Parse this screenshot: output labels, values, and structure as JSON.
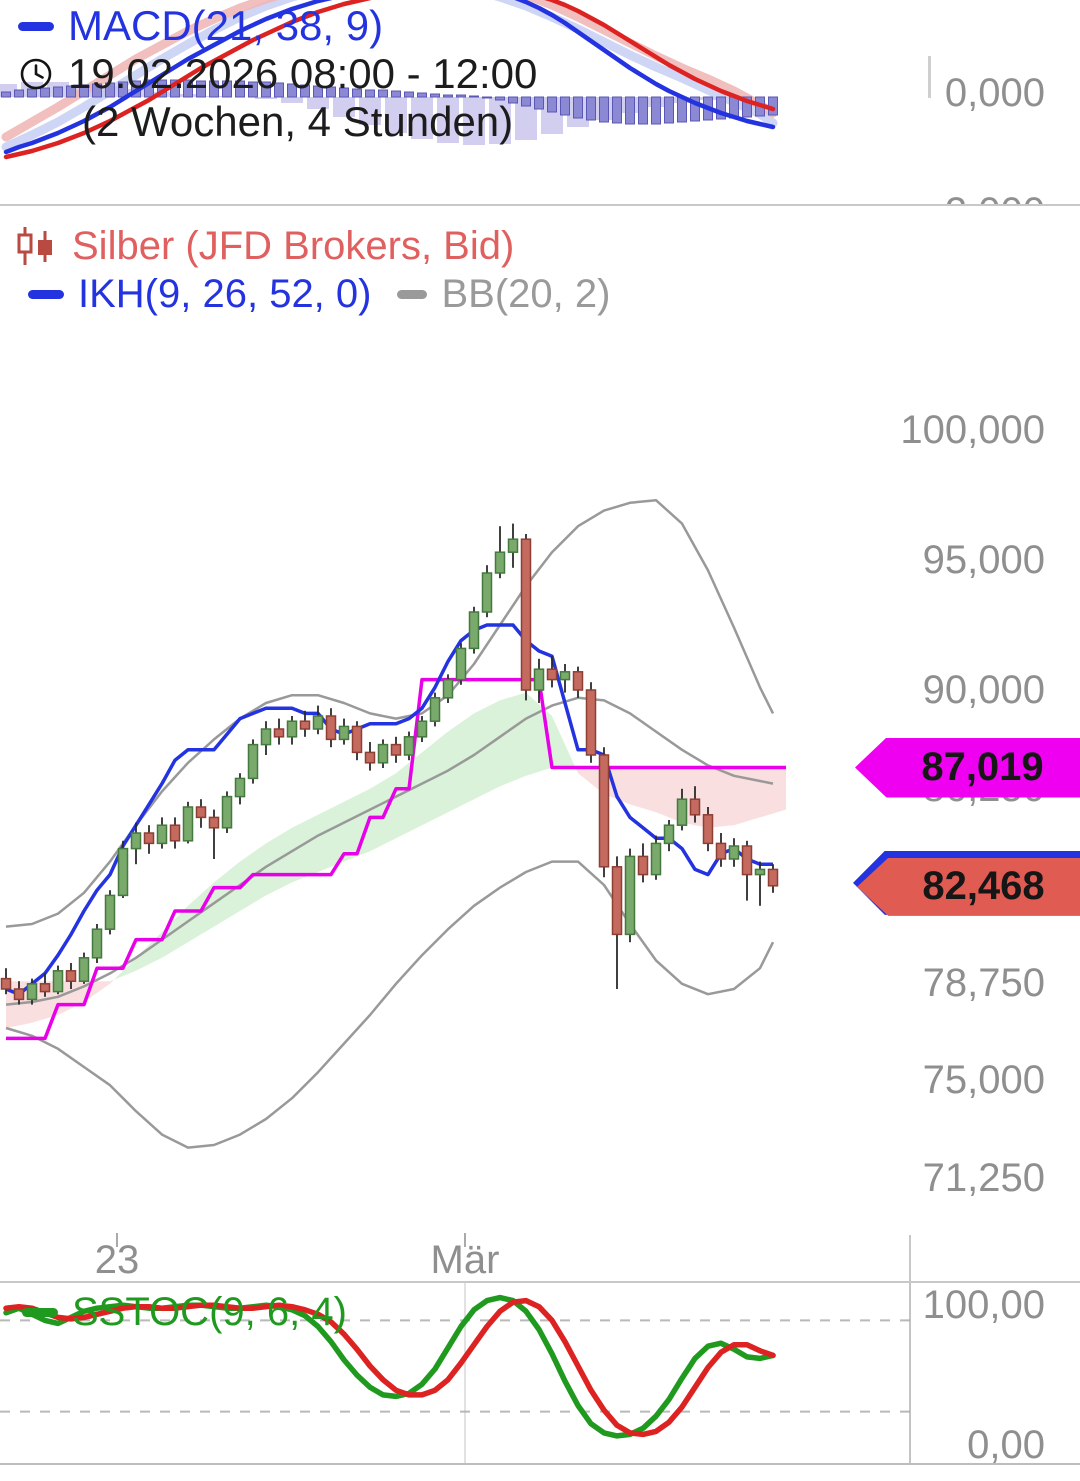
{
  "colors": {
    "hist_fill": "#8b88d4",
    "hist_stroke": "#5a57b5",
    "ghost_bar": "#c2bde9",
    "macd_line": "#2433e0",
    "signal_line": "#dd2222",
    "ghost_macd": "#c3cbf2",
    "ghost_signal": "#f0b4b4",
    "candle_up_fill": "#7aa96c",
    "candle_up_stroke": "#44793f",
    "candle_down_fill": "#c46a5e",
    "candle_down_stroke": "#8d3f34",
    "wick": "#2a2a2a",
    "ikh_blue": "#2433e0",
    "kijun_magenta": "#e800e8",
    "bb_gray": "#999999",
    "cloud_up": "#c9ecc9",
    "cloud_down": "#f7d2d2",
    "stoch_k": "#1f9a1f",
    "stoch_d": "#dd2222",
    "tag_magenta": "#f000f0",
    "tag_red": "#e05b52",
    "tag_blue": "#2433e0",
    "axis_text": "#8f8f8f",
    "title_red": "#e06060",
    "legend_blue": "#2433e0",
    "legend_gray": "#9a9a9a",
    "legend_green": "#1f9a1f",
    "timestamp": "#1c1c1c",
    "icon_red": "#b84a42"
  },
  "ui": {
    "macd_panel": {
      "indicator_label": "MACD(21, 38, 9)",
      "timestamp": "19.02.2026 08:00 - 12:00",
      "period": "(2 Wochen, 4 Stunden)",
      "axis_top_label": "0,000",
      "axis_bottom_label_partial": "-2,000"
    },
    "price_panel": {
      "title": "Silber (JFD Brokers, Bid)",
      "indicator_ikh": "IKH(9, 26, 52, 0)",
      "indicator_bb": "BB(20, 2)",
      "y_axis_labels": [
        {
          "text": "100,000",
          "price": 100000
        },
        {
          "text": "95,000",
          "price": 95000
        },
        {
          "text": "90,000",
          "price": 90000
        },
        {
          "text": "86,250",
          "price": 86250
        },
        {
          "text": "78,750",
          "price": 78750
        },
        {
          "text": "75,000",
          "price": 75000
        },
        {
          "text": "71,250",
          "price": 71250
        }
      ],
      "x_axis_labels": [
        {
          "text": "23",
          "x": 117
        },
        {
          "text": "Mär",
          "x": 465
        }
      ],
      "tags": [
        {
          "label": "87,019",
          "value": 87019,
          "type": "kijun"
        },
        {
          "label": "82,468",
          "value": 82468,
          "type": "last"
        }
      ]
    },
    "stoch_panel": {
      "indicator_label": "SSTOC(9, 6, 4)",
      "axis_top_label": "100,00",
      "axis_bottom_label": "0,00"
    }
  },
  "chart_data": [
    {
      "type": "macd",
      "title": "MACD(21, 38, 9)",
      "zero_label": "0,000",
      "series": {
        "macd": [
          -5.5,
          -5.0,
          -4.6,
          -4.1,
          -3.6,
          -3.0,
          -2.4,
          -1.7,
          -1.0,
          -0.2,
          0.6,
          1.4,
          2.2,
          3.0,
          3.8,
          4.5,
          5.2,
          5.9,
          6.6,
          7.2,
          7.8,
          8.3,
          8.8,
          9.2,
          9.6,
          9.9,
          10.2,
          10.4,
          10.6,
          10.8,
          10.9,
          11.0,
          11.0,
          11.0,
          11.0,
          11.0,
          10.9,
          10.7,
          10.4,
          10.0,
          9.5,
          8.9,
          8.2,
          7.4,
          6.5,
          5.6,
          4.7,
          3.8,
          2.9,
          2.1,
          1.3,
          0.6,
          0.0,
          -0.6,
          -1.1,
          -1.6,
          -2.0,
          -2.4,
          -2.7,
          -3.0
        ],
        "signal": [
          -6.0,
          -5.7,
          -5.4,
          -5.0,
          -4.6,
          -4.1,
          -3.6,
          -3.0,
          -2.4,
          -1.7,
          -1.0,
          -0.3,
          0.5,
          1.3,
          2.1,
          2.9,
          3.6,
          4.3,
          5.0,
          5.7,
          6.3,
          6.9,
          7.5,
          8.0,
          8.5,
          8.9,
          9.3,
          9.6,
          9.9,
          10.1,
          10.3,
          10.5,
          10.6,
          10.7,
          10.8,
          10.8,
          10.8,
          10.8,
          10.7,
          10.6,
          10.4,
          10.1,
          9.7,
          9.2,
          8.6,
          7.9,
          7.2,
          6.4,
          5.6,
          4.8,
          4.0,
          3.2,
          2.5,
          1.8,
          1.2,
          0.6,
          0.1,
          -0.4,
          -0.8,
          -1.2
        ],
        "ghost_macd": [
          -5,
          -3.8,
          -2.5,
          -1,
          0.6,
          2.2,
          3.8,
          5.3,
          6.7,
          8,
          9.1,
          10,
          10.7,
          11.2,
          11.5,
          11.6,
          11.5,
          11.2,
          10.7,
          10,
          9.1,
          8,
          6.8,
          5.5,
          4.2,
          3,
          1.9,
          0.7,
          -0.5,
          -1.7,
          -2.6
        ],
        "ghost_signal": [
          -4,
          -2.5,
          -1,
          0.6,
          2.2,
          3.8,
          5.2,
          6.6,
          7.8,
          8.9,
          9.8,
          10.6,
          11.2,
          11.7,
          12,
          12.2,
          12.2,
          12,
          11.6,
          11,
          10.2,
          9.2,
          8,
          6.7,
          5.4,
          4.1,
          2.9,
          1.8,
          0.6,
          -0.8,
          -1.6
        ],
        "ghost_histogram": [
          1.3,
          1.5,
          1.5,
          1.3,
          1.1,
          0.8,
          0.5,
          0.3,
          0.1,
          0,
          -0.2,
          -0.6,
          -1.2,
          -2,
          -2.8,
          -3.6,
          -4.2,
          -4.6,
          -4.8,
          -4.7,
          -4.3,
          -3.7,
          -3,
          -2.3,
          -1.6,
          -1,
          -0.6,
          -0.3,
          -0.1,
          0,
          0
        ]
      }
    },
    {
      "type": "candlestick",
      "symbol": "Silber (JFD Brokers, Bid)",
      "indicators": [
        "IKH(9, 26, 52, 0)",
        "BB(20, 2)"
      ],
      "y_axis_ticks": [
        100000,
        95000,
        90000,
        86250,
        82500,
        78750,
        75000,
        71250
      ],
      "x_axis_labels": [
        "23",
        "Mär"
      ],
      "last_price": 82468,
      "candles": [
        [
          78900,
          79300,
          78300,
          78500
        ],
        [
          78500,
          78800,
          77900,
          78100
        ],
        [
          78100,
          78900,
          77900,
          78700
        ],
        [
          78700,
          79100,
          78200,
          78400
        ],
        [
          78400,
          79400,
          78300,
          79200
        ],
        [
          79200,
          79500,
          78500,
          78800
        ],
        [
          78800,
          79900,
          78700,
          79700
        ],
        [
          79700,
          81000,
          79500,
          80800
        ],
        [
          80800,
          82300,
          80600,
          82100
        ],
        [
          82100,
          84200,
          82000,
          83900
        ],
        [
          83900,
          84900,
          83300,
          84500
        ],
        [
          84500,
          84800,
          83700,
          84100
        ],
        [
          84100,
          85100,
          83900,
          84800
        ],
        [
          84800,
          85100,
          83900,
          84200
        ],
        [
          84200,
          85700,
          84100,
          85500
        ],
        [
          85500,
          85800,
          84700,
          85100
        ],
        [
          85100,
          85400,
          83500,
          84700
        ],
        [
          84700,
          86100,
          84500,
          85900
        ],
        [
          85900,
          86800,
          85600,
          86600
        ],
        [
          86600,
          88100,
          86400,
          87900
        ],
        [
          87900,
          88800,
          87500,
          88500
        ],
        [
          88500,
          88900,
          87900,
          88200
        ],
        [
          88200,
          89000,
          87900,
          88800
        ],
        [
          88800,
          89200,
          88200,
          88500
        ],
        [
          88500,
          89400,
          88300,
          89000
        ],
        [
          89000,
          89300,
          87800,
          88100
        ],
        [
          88100,
          88900,
          87900,
          88600
        ],
        [
          88600,
          88800,
          87300,
          87600
        ],
        [
          87600,
          88000,
          86900,
          87200
        ],
        [
          87200,
          88100,
          87000,
          87900
        ],
        [
          87900,
          88200,
          87200,
          87500
        ],
        [
          87500,
          88400,
          87300,
          88200
        ],
        [
          88200,
          89000,
          88000,
          88800
        ],
        [
          88800,
          89900,
          88600,
          89700
        ],
        [
          89700,
          90600,
          89500,
          90400
        ],
        [
          90400,
          91800,
          90200,
          91600
        ],
        [
          91600,
          93200,
          91400,
          93000
        ],
        [
          93000,
          94800,
          92800,
          94500
        ],
        [
          94500,
          96300,
          94300,
          95300
        ],
        [
          95300,
          96400,
          94700,
          95800
        ],
        [
          95800,
          96000,
          89600,
          90000
        ],
        [
          90000,
          91200,
          89500,
          90800
        ],
        [
          90800,
          91300,
          90100,
          90400
        ],
        [
          90400,
          91000,
          89900,
          90700
        ],
        [
          90700,
          90900,
          89700,
          90000
        ],
        [
          90000,
          90300,
          87200,
          87500
        ],
        [
          87500,
          87800,
          82800,
          83200
        ],
        [
          83200,
          83600,
          78500,
          80600
        ],
        [
          80600,
          83900,
          80300,
          83600
        ],
        [
          83600,
          84100,
          82600,
          82900
        ],
        [
          82900,
          84400,
          82700,
          84100
        ],
        [
          84100,
          85000,
          83800,
          84800
        ],
        [
          84800,
          86200,
          84600,
          85800
        ],
        [
          85800,
          86300,
          84900,
          85200
        ],
        [
          85200,
          85500,
          83800,
          84100
        ],
        [
          84100,
          84500,
          83200,
          83500
        ],
        [
          83500,
          84300,
          83200,
          84000
        ],
        [
          84000,
          84200,
          81900,
          82900
        ],
        [
          82900,
          83400,
          81700,
          83100
        ],
        [
          83100,
          83300,
          82200,
          82468
        ]
      ],
      "ichimoku": {
        "tenkan_blue": [
          78500,
          78300,
          78700,
          79100,
          79800,
          80600,
          81500,
          82300,
          82900,
          84000,
          84800,
          85600,
          86400,
          87300,
          87700,
          87700,
          87700,
          88300,
          88900,
          89100,
          89300,
          89300,
          89300,
          89100,
          89100,
          88500,
          88300,
          88500,
          88700,
          88700,
          88700,
          88900,
          89300,
          90100,
          91100,
          91900,
          92300,
          92500,
          92500,
          92500,
          91900,
          91500,
          91300,
          89500,
          87700,
          87700,
          87500,
          85900,
          85100,
          84700,
          84300,
          84300,
          83900,
          83100,
          82900,
          83700,
          83900,
          83500,
          83300,
          83300
        ],
        "kijun_magenta": [
          76600,
          76600,
          76600,
          76600,
          77900,
          77900,
          77900,
          79300,
          79300,
          79300,
          80400,
          80400,
          80400,
          81500,
          81500,
          81500,
          82400,
          82400,
          82400,
          82900,
          82900,
          82900,
          82900,
          82900,
          82900,
          82900,
          83700,
          83700,
          85100,
          85100,
          86200,
          86200,
          90400,
          90400,
          90400,
          90400,
          90400,
          90400,
          90400,
          90400,
          90400,
          90400,
          87019,
          87019,
          87019,
          87019,
          87019,
          87019,
          87019,
          87019,
          87019,
          87019,
          87019,
          87019,
          87019,
          87019,
          87019,
          87019,
          87019,
          87019
        ],
        "kijun_extension": 87019,
        "cloud_span_a": [
          77000,
          77200,
          77500,
          78000,
          78700,
          79700,
          80700,
          81700,
          82600,
          83400,
          84100,
          84700,
          85200,
          85700,
          86200,
          86800,
          87600,
          88400,
          89100,
          89600,
          89900,
          89000,
          86800,
          86000,
          85600,
          85300,
          84900,
          84700,
          84800,
          85100,
          85400
        ],
        "cloud_span_b": [
          78800,
          78800,
          78800,
          78800,
          78800,
          79200,
          79700,
          80300,
          80900,
          81500,
          82100,
          82600,
          83000,
          83400,
          83800,
          84300,
          84800,
          85300,
          85800,
          86300,
          86700,
          87019,
          87019,
          87019,
          87019,
          87019,
          87019,
          87019,
          87019,
          87019,
          87019
        ]
      },
      "bollinger": {
        "upper": [
          80900,
          81000,
          81400,
          82200,
          83400,
          84800,
          86100,
          87200,
          88100,
          88900,
          89500,
          89800,
          89800,
          89500,
          89100,
          88900,
          89100,
          89800,
          91000,
          92500,
          94000,
          95300,
          96300,
          96900,
          97200,
          97300,
          96400,
          94600,
          92400,
          90100,
          89100
        ],
        "middle": [
          77900,
          78000,
          78200,
          78600,
          79100,
          79700,
          80400,
          81100,
          81800,
          82500,
          83200,
          83800,
          84400,
          84900,
          85400,
          85900,
          86400,
          86900,
          87500,
          88200,
          88900,
          89400,
          89700,
          89600,
          89100,
          88400,
          87700,
          87100,
          86700,
          86500,
          86400
        ],
        "lower": [
          77000,
          76700,
          76200,
          75500,
          74800,
          73800,
          72900,
          72400,
          72500,
          72900,
          73500,
          74300,
          75300,
          76400,
          77500,
          78700,
          79800,
          80800,
          81700,
          82400,
          83000,
          83400,
          83400,
          82500,
          81000,
          79600,
          78700,
          78300,
          78500,
          79300,
          80300
        ]
      }
    },
    {
      "type": "stochastic",
      "title": "SSTOC(9, 6, 4)",
      "overbought": 80,
      "oversold": 20,
      "ylim": [
        0,
        100
      ],
      "k": [
        85,
        88,
        84,
        80,
        78,
        82,
        86,
        88,
        89,
        90,
        89,
        88,
        88,
        89,
        90,
        90,
        89,
        88,
        88,
        89,
        90,
        89,
        87,
        83,
        76,
        66,
        54,
        44,
        36,
        31,
        30,
        32,
        38,
        48,
        62,
        76,
        87,
        93,
        95,
        93,
        86,
        74,
        58,
        40,
        24,
        12,
        6,
        4,
        5,
        9,
        17,
        28,
        42,
        55,
        63,
        65,
        61,
        56,
        55,
        57
      ],
      "d": [
        88,
        89,
        88,
        85,
        82,
        81,
        82,
        84,
        86,
        88,
        89,
        89,
        88,
        88,
        89,
        90,
        90,
        89,
        88,
        88,
        89,
        90,
        89,
        87,
        84,
        79,
        71,
        61,
        50,
        41,
        34,
        31,
        31,
        34,
        41,
        52,
        64,
        76,
        86,
        92,
        93,
        89,
        80,
        66,
        50,
        34,
        21,
        11,
        6,
        5,
        7,
        13,
        23,
        36,
        49,
        59,
        64,
        64,
        60,
        57
      ]
    }
  ]
}
